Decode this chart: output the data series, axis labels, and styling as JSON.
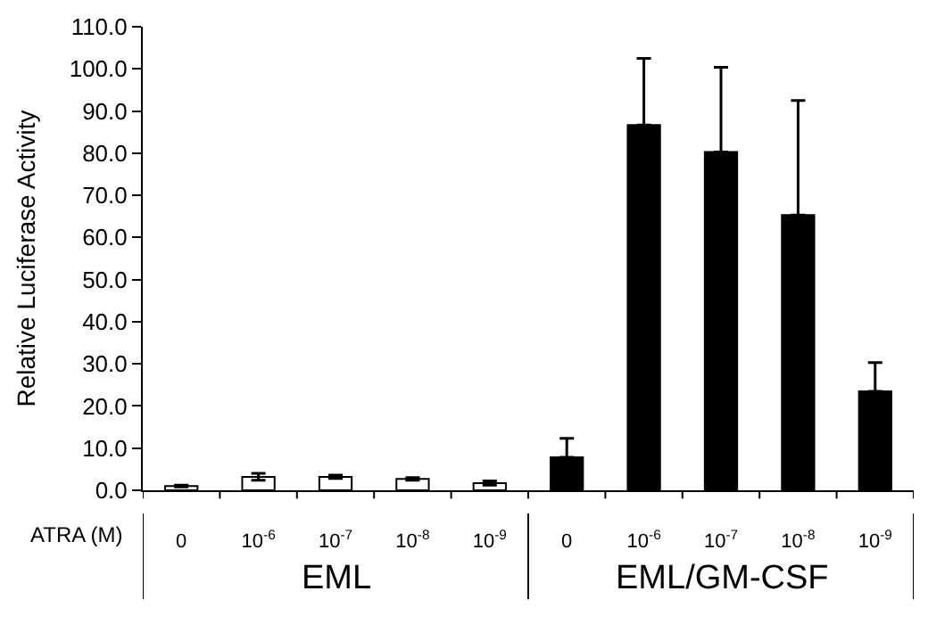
{
  "chart_data": {
    "type": "bar",
    "categories": [
      "0",
      "10$^{-6}$",
      "10$^{-7}$",
      "10$^{-8}$",
      "10$^{-9}$",
      "0",
      "10$^{-6}$",
      "10$^{-7}$",
      "10$^{-8}$",
      "10$^{-9}$"
    ],
    "values": [
      1.0,
      3.2,
      3.2,
      2.7,
      1.7,
      7.8,
      86.7,
      80.3,
      65.3,
      23.5
    ],
    "errors": [
      0.2,
      0.8,
      0.4,
      0.3,
      0.5,
      [
        7.8,
        12.3
      ],
      [
        86.7,
        102.5
      ],
      [
        80.3,
        100.4
      ],
      [
        65.3,
        92.5
      ],
      [
        23.5,
        30.3
      ]
    ],
    "colors": [
      "#ffffff",
      "#ffffff",
      "#ffffff",
      "#ffffff",
      "#ffffff",
      "#000000",
      "#000000",
      "#000000",
      "#000000",
      "#000000"
    ],
    "xlabel": "ATRA (M)",
    "ylabel": "Relative Luciferase Activity",
    "annotations": [
      "EML",
      "EML/GM-CSF"
    ],
    "ylim": [
      0,
      110
    ],
    "yticks": [
      {
        "value": 0,
        "label": "0.0"
      },
      {
        "value": 10,
        "label": "10.0"
      },
      {
        "value": 20,
        "label": "20.0"
      },
      {
        "value": 30,
        "label": "30.0"
      },
      {
        "value": 40,
        "label": "40.0"
      },
      {
        "value": 50,
        "label": "50.0"
      },
      {
        "value": 60,
        "label": "60.0"
      },
      {
        "value": 70,
        "label": "70.0"
      },
      {
        "value": 80,
        "label": "80.0"
      },
      {
        "value": 90,
        "label": "90.0"
      },
      {
        "value": 100,
        "label": "100.0"
      },
      {
        "value": 110,
        "label": "110.0"
      }
    ]
  }
}
